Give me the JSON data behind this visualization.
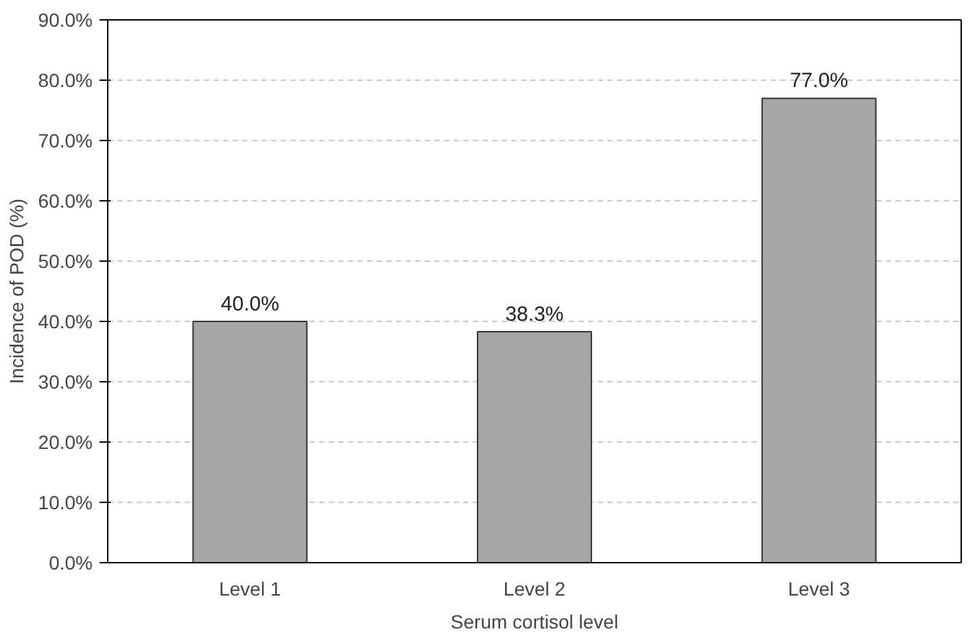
{
  "chart_data": {
    "type": "bar",
    "xlabel": "Serum cortisol level",
    "ylabel": "Incidence of POD (%)",
    "categories": [
      "Level 1",
      "Level 2",
      "Level 3"
    ],
    "values": [
      40.0,
      38.3,
      77.0
    ],
    "value_labels": [
      "40.0%",
      "38.3%",
      "77.0%"
    ],
    "color": "#a6a6a6",
    "ylim": [
      0,
      90
    ],
    "yticks": [
      {
        "value": 0,
        "label": "0.0%"
      },
      {
        "value": 10,
        "label": "10.0%"
      },
      {
        "value": 20,
        "label": "20.0%"
      },
      {
        "value": 30,
        "label": "30.0%"
      },
      {
        "value": 40,
        "label": "40.0%"
      },
      {
        "value": 50,
        "label": "50.0%"
      },
      {
        "value": 60,
        "label": "60.0%"
      },
      {
        "value": 70,
        "label": "70.0%"
      },
      {
        "value": 80,
        "label": "80.0%"
      },
      {
        "value": 90,
        "label": "90.0%"
      }
    ],
    "grid": "y"
  }
}
